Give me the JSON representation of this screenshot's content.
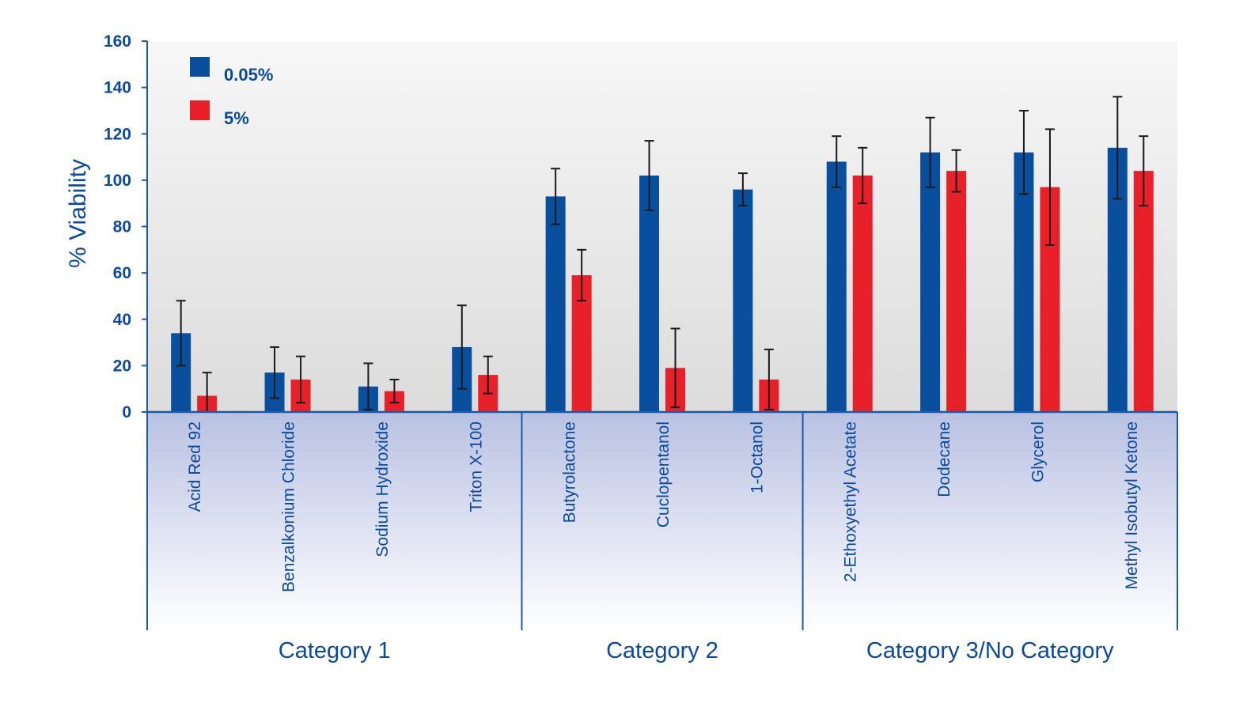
{
  "chart_data": {
    "type": "bar",
    "ylabel": "% Viability",
    "ylim": [
      0,
      160
    ],
    "yticks": [
      0,
      20,
      40,
      60,
      80,
      100,
      120,
      140,
      160
    ],
    "legend_placement": "top-left",
    "categories": [
      "Acid Red 92",
      "Benzalkonium Chloride",
      "Sodium Hydroxide",
      "Triton X-100",
      "Butyrolactone",
      "Cuclopentanol",
      "1-Octanol",
      "2-Ethoxyethyl Acetate",
      "Dodecane",
      "Glycerol",
      "Methyl Isobutyl Ketone"
    ],
    "groups": [
      {
        "label": "Category 1",
        "start": 0,
        "end": 3
      },
      {
        "label": "Category 2",
        "start": 4,
        "end": 6
      },
      {
        "label": "Category 3/No Category",
        "start": 7,
        "end": 10
      }
    ],
    "series": [
      {
        "name": "0.05%",
        "color": "#0a4f9e",
        "values": [
          34,
          17,
          11,
          28,
          93,
          102,
          96,
          108,
          112,
          112,
          114
        ],
        "errors": [
          14,
          11,
          10,
          18,
          12,
          15,
          7,
          11,
          15,
          18,
          22
        ]
      },
      {
        "name": "5%",
        "color": "#e8202a",
        "values": [
          7,
          14,
          9,
          16,
          59,
          19,
          14,
          102,
          104,
          97,
          104
        ],
        "errors": [
          10,
          10,
          5,
          8,
          11,
          17,
          13,
          12,
          9,
          25,
          15
        ]
      }
    ],
    "colors": {
      "axis": "#1b5aa6",
      "text": "#0b4a9a",
      "error_bar": "#1a1a1a"
    }
  }
}
